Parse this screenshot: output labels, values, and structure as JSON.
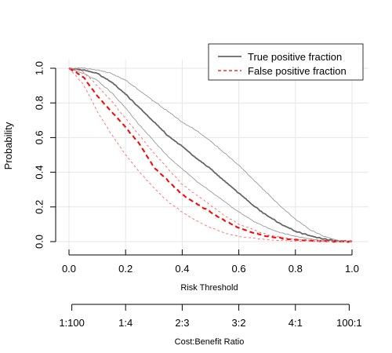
{
  "chart_data": {
    "type": "line",
    "xlabel": "Risk Threshold",
    "ylabel": "Probability",
    "xlim": [
      0,
      1
    ],
    "ylim": [
      0,
      1
    ],
    "x_ticks": [
      "0.0",
      "0.2",
      "0.4",
      "0.6",
      "0.8",
      "1.0"
    ],
    "y_ticks": [
      "0.0",
      "0.2",
      "0.4",
      "0.6",
      "0.8",
      "1.0"
    ],
    "grid": true,
    "legend_position": "top-right",
    "x": [
      0,
      0.05,
      0.1,
      0.15,
      0.2,
      0.25,
      0.3,
      0.35,
      0.4,
      0.45,
      0.5,
      0.55,
      0.6,
      0.65,
      0.7,
      0.75,
      0.8,
      0.85,
      0.9,
      0.95,
      1.0
    ],
    "series": [
      {
        "name": "True positive fraction",
        "style": "solid",
        "role": "estimate",
        "color": "#666666",
        "values": [
          1.0,
          0.99,
          0.97,
          0.92,
          0.85,
          0.77,
          0.69,
          0.61,
          0.55,
          0.48,
          0.42,
          0.35,
          0.28,
          0.21,
          0.15,
          0.1,
          0.06,
          0.035,
          0.015,
          0.004,
          0.0
        ]
      },
      {
        "style": "solid",
        "role": "upper",
        "color": "#999999",
        "values": [
          1.0,
          1.0,
          0.99,
          0.97,
          0.93,
          0.87,
          0.81,
          0.75,
          0.69,
          0.64,
          0.58,
          0.51,
          0.44,
          0.36,
          0.28,
          0.2,
          0.13,
          0.07,
          0.03,
          0.008,
          0.0
        ]
      },
      {
        "style": "solid",
        "role": "lower",
        "color": "#999999",
        "values": [
          1.0,
          0.97,
          0.93,
          0.86,
          0.77,
          0.67,
          0.58,
          0.49,
          0.42,
          0.35,
          0.29,
          0.23,
          0.17,
          0.12,
          0.08,
          0.05,
          0.03,
          0.015,
          0.006,
          0.002,
          0.0
        ]
      },
      {
        "name": "False positive fraction",
        "style": "dashed",
        "role": "estimate",
        "color": "#ff0000",
        "values": [
          1.0,
          0.95,
          0.84,
          0.75,
          0.66,
          0.56,
          0.43,
          0.35,
          0.27,
          0.22,
          0.17,
          0.12,
          0.08,
          0.05,
          0.03,
          0.02,
          0.01,
          0.005,
          0.002,
          0.001,
          0.0
        ]
      },
      {
        "style": "dashed",
        "role": "upper",
        "color": "#ff6666",
        "values": [
          1.0,
          0.98,
          0.9,
          0.81,
          0.71,
          0.61,
          0.51,
          0.42,
          0.33,
          0.27,
          0.21,
          0.15,
          0.1,
          0.07,
          0.04,
          0.025,
          0.015,
          0.008,
          0.003,
          0.001,
          0.0
        ]
      },
      {
        "style": "dashed",
        "role": "lower",
        "color": "#ff6666",
        "values": [
          1.0,
          0.91,
          0.75,
          0.62,
          0.5,
          0.4,
          0.31,
          0.23,
          0.17,
          0.12,
          0.08,
          0.05,
          0.03,
          0.02,
          0.01,
          0.006,
          0.003,
          0.001,
          0.0005,
          0.0,
          0.0
        ]
      }
    ],
    "secondary_axis": {
      "label": "Cost:Benefit Ratio",
      "ticks": [
        "1:100",
        "1:4",
        "2:3",
        "3:2",
        "4:1",
        "100:1"
      ],
      "tick_positions": [
        0.01,
        0.2,
        0.4,
        0.6,
        0.8,
        0.99
      ]
    }
  }
}
